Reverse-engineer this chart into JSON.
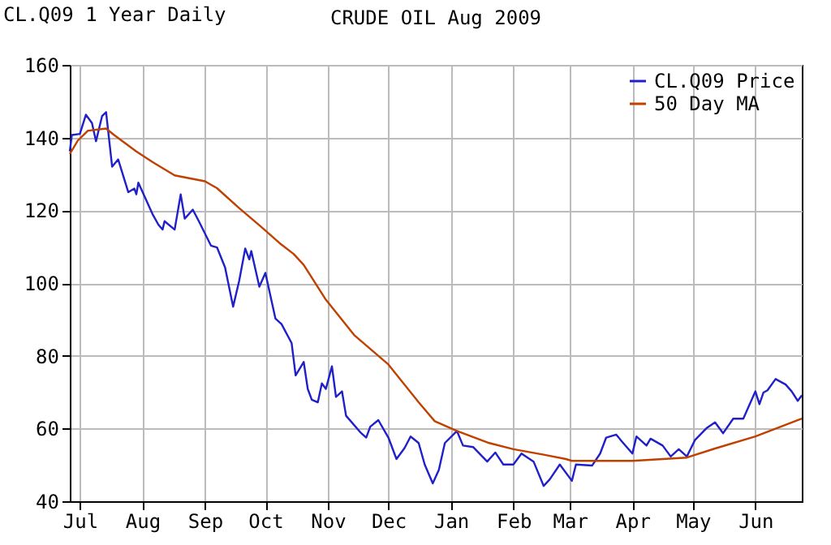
{
  "chart_data": {
    "type": "line",
    "title": "CRUDE OIL Aug 2009",
    "annotations": [
      "CL.Q09 1 Year Daily"
    ],
    "xlim": [
      "2008-06-26",
      "2009-06-24"
    ],
    "xticks": [
      {
        "value": "2008-07-01",
        "label": "Jul"
      },
      {
        "value": "2008-08-01",
        "label": "Aug"
      },
      {
        "value": "2008-09-01",
        "label": "Sep"
      },
      {
        "value": "2008-10-01",
        "label": "Oct"
      },
      {
        "value": "2008-11-01",
        "label": "Nov"
      },
      {
        "value": "2008-12-01",
        "label": "Dec"
      },
      {
        "value": "2009-01-01",
        "label": "Jan"
      },
      {
        "value": "2009-02-01",
        "label": "Feb"
      },
      {
        "value": "2009-03-01",
        "label": "Mar"
      },
      {
        "value": "2009-04-01",
        "label": "Apr"
      },
      {
        "value": "2009-05-01",
        "label": "May"
      },
      {
        "value": "2009-06-01",
        "label": "Jun"
      }
    ],
    "ylim": [
      40,
      160
    ],
    "yticks": [
      40,
      60,
      80,
      100,
      120,
      140,
      160
    ],
    "grid": true,
    "legend": "top right",
    "series": [
      {
        "name": "CL.Q09 Price",
        "color": "#2020c8",
        "x": [
          "2008-06-26",
          "2008-06-27",
          "2008-07-01",
          "2008-07-04",
          "2008-07-07",
          "2008-07-09",
          "2008-07-12",
          "2008-07-14",
          "2008-07-17",
          "2008-07-20",
          "2008-07-25",
          "2008-07-28",
          "2008-07-29",
          "2008-07-30",
          "2008-08-06",
          "2008-08-09",
          "2008-08-11",
          "2008-08-12",
          "2008-08-17",
          "2008-08-20",
          "2008-08-22",
          "2008-08-26",
          "2008-08-29",
          "2008-09-04",
          "2008-09-07",
          "2008-09-11",
          "2008-09-15",
          "2008-09-18",
          "2008-09-21",
          "2008-09-23",
          "2008-09-24",
          "2008-09-28",
          "2008-10-01",
          "2008-10-06",
          "2008-10-09",
          "2008-10-14",
          "2008-10-16",
          "2008-10-20",
          "2008-10-22",
          "2008-10-24",
          "2008-10-27",
          "2008-10-29",
          "2008-10-31",
          "2008-11-03",
          "2008-11-05",
          "2008-11-08",
          "2008-11-10",
          "2008-11-17",
          "2008-11-20",
          "2008-11-22",
          "2008-11-26",
          "2008-12-01",
          "2008-12-05",
          "2008-12-09",
          "2008-12-12",
          "2008-12-16",
          "2008-12-19",
          "2008-12-23",
          "2008-12-26",
          "2008-12-29",
          "2009-01-04",
          "2009-01-07",
          "2009-01-12",
          "2009-01-19",
          "2009-01-23",
          "2009-01-27",
          "2009-02-01",
          "2009-02-05",
          "2009-02-11",
          "2009-02-16",
          "2009-02-19",
          "2009-02-24",
          "2009-03-02",
          "2009-03-04",
          "2009-03-12",
          "2009-03-16",
          "2009-03-19",
          "2009-03-24",
          "2009-03-27",
          "2009-04-01",
          "2009-04-03",
          "2009-04-08",
          "2009-04-10",
          "2009-04-16",
          "2009-04-20",
          "2009-04-24",
          "2009-04-28",
          "2009-05-02",
          "2009-05-08",
          "2009-05-12",
          "2009-05-16",
          "2009-05-21",
          "2009-05-26",
          "2009-06-01",
          "2009-06-03",
          "2009-06-05",
          "2009-06-07",
          "2009-06-11",
          "2009-06-16",
          "2009-06-19",
          "2009-06-22",
          "2009-06-24"
        ],
        "values": [
          136.2,
          140.7,
          141,
          146.3,
          144,
          139,
          145.9,
          147,
          132,
          134,
          125,
          126,
          124.4,
          127.6,
          119,
          116,
          114.7,
          117,
          114.7,
          124.4,
          117.7,
          120.2,
          117,
          110.3,
          109.8,
          104.3,
          93.5,
          100.6,
          109.5,
          106.5,
          108.8,
          99,
          102.8,
          90.2,
          88.7,
          83.5,
          74.6,
          78.3,
          70.9,
          67.9,
          67.2,
          72.4,
          70.9,
          77.1,
          68.7,
          70.2,
          63.5,
          59,
          57.5,
          60.5,
          62.3,
          57.5,
          51.6,
          54.6,
          57.8,
          56,
          50.1,
          44.9,
          48.6,
          56,
          59.3,
          55.3,
          54.9,
          50.9,
          53.4,
          50.1,
          50.1,
          53.1,
          50.9,
          44.2,
          46,
          50.1,
          45.6,
          50.1,
          49.8,
          53.1,
          57.5,
          58.3,
          56.3,
          53.1,
          57.8,
          55.3,
          57.2,
          55.3,
          52.3,
          54.3,
          52.3,
          56.8,
          60.2,
          61.7,
          58.7,
          62.7,
          62.7,
          70.2,
          66.7,
          69.9,
          70.5,
          73.6,
          72.1,
          70.2,
          67.6,
          69.1
        ]
      },
      {
        "name": "50 Day MA",
        "color": "#c04000",
        "x": [
          "2008-06-26",
          "2008-06-30",
          "2008-07-05",
          "2008-07-14",
          "2008-07-18",
          "2008-07-29",
          "2008-08-06",
          "2008-08-17",
          "2008-09-01",
          "2008-09-07",
          "2008-09-18",
          "2008-09-29",
          "2008-10-08",
          "2008-10-15",
          "2008-10-20",
          "2008-10-31",
          "2008-11-14",
          "2008-12-01",
          "2008-12-16",
          "2008-12-24",
          "2009-01-04",
          "2009-01-20",
          "2009-02-01",
          "2009-02-16",
          "2009-02-27",
          "2009-03-02",
          "2009-04-01",
          "2009-04-28",
          "2009-05-12",
          "2009-06-01",
          "2009-06-24"
        ],
        "values": [
          135.5,
          139.2,
          141.9,
          142.5,
          140.7,
          136.2,
          133.3,
          129.6,
          128,
          126.1,
          120.6,
          115.4,
          111,
          108,
          105,
          95.4,
          85.7,
          77.6,
          67.2,
          62,
          59.3,
          56,
          54.3,
          52.8,
          51.6,
          51.1,
          51.1,
          52,
          54.5,
          57.8,
          62.7
        ]
      }
    ]
  }
}
